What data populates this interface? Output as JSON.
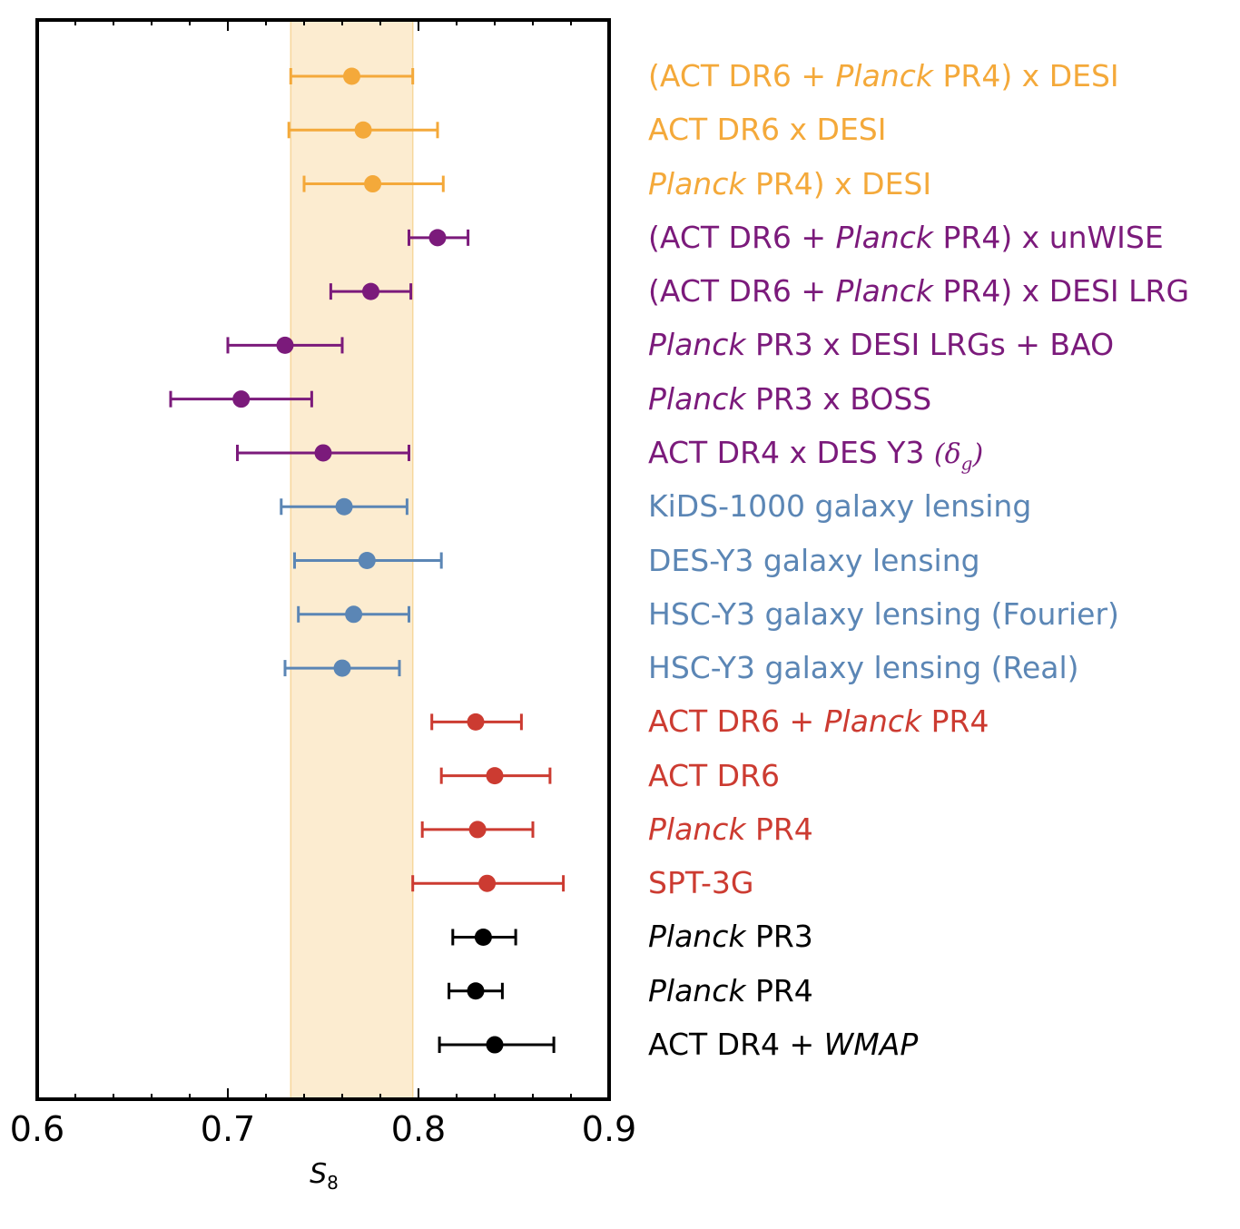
{
  "chart_data": {
    "type": "scatter",
    "subtype": "forest-plot-horizontal-errorbars",
    "xlabel_var": "S",
    "xlabel_sub": "8",
    "xlim": [
      0.6,
      0.9
    ],
    "xticks": [
      "0.6",
      "0.7",
      "0.8",
      "0.9"
    ],
    "grid": false,
    "band": {
      "range": [
        0.733,
        0.797
      ],
      "color": "#fcecd0",
      "edge_color": "#f7d79c"
    },
    "colors": {
      "orange": "#f4a93a",
      "purple": "#7b1a7b",
      "blue": "#5b86b5",
      "red": "#cc3b31",
      "black": "#000000"
    },
    "points": [
      {
        "parts": [
          [
            "(ACT DR6 + ",
            "n"
          ],
          [
            "Planck",
            "i"
          ],
          [
            " PR4) x DESI",
            "n"
          ]
        ],
        "color": "orange",
        "value": 0.765,
        "lo": 0.733,
        "hi": 0.797
      },
      {
        "parts": [
          [
            "ACT DR6 x DESI",
            "n"
          ]
        ],
        "color": "orange",
        "value": 0.771,
        "lo": 0.732,
        "hi": 0.81
      },
      {
        "parts": [
          [
            "Planck",
            "i"
          ],
          [
            " PR4) x DESI",
            "n"
          ]
        ],
        "color": "orange",
        "value": 0.776,
        "lo": 0.74,
        "hi": 0.813
      },
      {
        "parts": [
          [
            "(ACT DR6 + ",
            "n"
          ],
          [
            "Planck",
            "i"
          ],
          [
            " PR4) x unWISE",
            "n"
          ]
        ],
        "color": "purple",
        "value": 0.81,
        "lo": 0.795,
        "hi": 0.826
      },
      {
        "parts": [
          [
            "(ACT DR6 + ",
            "n"
          ],
          [
            "Planck",
            "i"
          ],
          [
            " PR4) x DESI LRG",
            "n"
          ]
        ],
        "color": "purple",
        "value": 0.775,
        "lo": 0.754,
        "hi": 0.796
      },
      {
        "parts": [
          [
            "Planck",
            "i"
          ],
          [
            " PR3 x DESI LRGs + BAO",
            "n"
          ]
        ],
        "color": "purple",
        "value": 0.73,
        "lo": 0.7,
        "hi": 0.76
      },
      {
        "parts": [
          [
            "Planck",
            "i"
          ],
          [
            " PR3 x BOSS",
            "n"
          ]
        ],
        "color": "purple",
        "value": 0.707,
        "lo": 0.67,
        "hi": 0.744
      },
      {
        "parts": [
          [
            "ACT DR4 x DES Y3 ",
            "n"
          ],
          [
            "(δ",
            "m"
          ],
          [
            "g",
            "msub"
          ],
          [
            ")",
            "m"
          ]
        ],
        "color": "purple",
        "value": 0.75,
        "lo": 0.705,
        "hi": 0.795
      },
      {
        "parts": [
          [
            "KiDS-1000 galaxy lensing",
            "n"
          ]
        ],
        "color": "blue",
        "value": 0.761,
        "lo": 0.728,
        "hi": 0.794
      },
      {
        "parts": [
          [
            "DES-Y3 galaxy lensing",
            "n"
          ]
        ],
        "color": "blue",
        "value": 0.773,
        "lo": 0.735,
        "hi": 0.812
      },
      {
        "parts": [
          [
            "HSC-Y3 galaxy lensing (Fourier)",
            "n"
          ]
        ],
        "color": "blue",
        "value": 0.766,
        "lo": 0.737,
        "hi": 0.795
      },
      {
        "parts": [
          [
            "HSC-Y3 galaxy lensing (Real)",
            "n"
          ]
        ],
        "color": "blue",
        "value": 0.76,
        "lo": 0.73,
        "hi": 0.79
      },
      {
        "parts": [
          [
            "ACT DR6 + ",
            "n"
          ],
          [
            "Planck",
            "i"
          ],
          [
            " PR4",
            "n"
          ]
        ],
        "color": "red",
        "value": 0.83,
        "lo": 0.807,
        "hi": 0.854
      },
      {
        "parts": [
          [
            "ACT DR6",
            "n"
          ]
        ],
        "color": "red",
        "value": 0.84,
        "lo": 0.812,
        "hi": 0.869
      },
      {
        "parts": [
          [
            "Planck",
            "i"
          ],
          [
            " PR4",
            "n"
          ]
        ],
        "color": "red",
        "value": 0.831,
        "lo": 0.802,
        "hi": 0.86
      },
      {
        "parts": [
          [
            "SPT-3G",
            "n"
          ]
        ],
        "color": "red",
        "value": 0.836,
        "lo": 0.797,
        "hi": 0.876
      },
      {
        "parts": [
          [
            "Planck",
            "i"
          ],
          [
            " PR3",
            "n"
          ]
        ],
        "color": "black",
        "value": 0.834,
        "lo": 0.818,
        "hi": 0.851
      },
      {
        "parts": [
          [
            "Planck",
            "i"
          ],
          [
            " PR4",
            "n"
          ]
        ],
        "color": "black",
        "value": 0.83,
        "lo": 0.816,
        "hi": 0.844
      },
      {
        "parts": [
          [
            "ACT DR4 + ",
            "n"
          ],
          [
            "WMAP",
            "i"
          ]
        ],
        "color": "black",
        "value": 0.84,
        "lo": 0.811,
        "hi": 0.871
      }
    ]
  }
}
